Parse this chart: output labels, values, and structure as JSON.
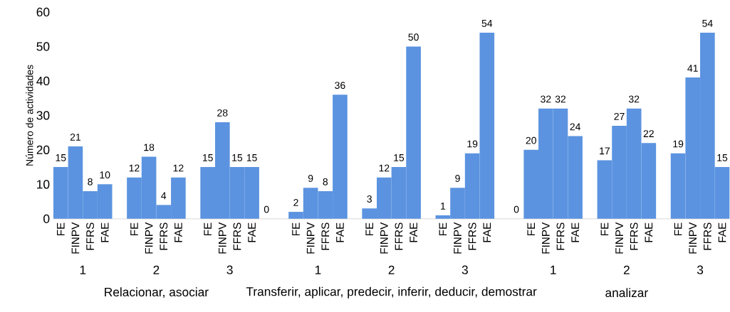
{
  "chart_data": {
    "type": "bar",
    "ylabel": "Número de actividades",
    "categories": [
      "FE",
      "FINPV",
      "FFRS",
      "FAE",
      null,
      "FE",
      "FINPV",
      "FFRS",
      "FAE",
      null,
      "FE",
      "FINPV",
      "FFRS",
      "FAE",
      null,
      null,
      "FE",
      "FINPV",
      "FFRS",
      "FAE",
      null,
      "FE",
      "FINPV",
      "FFRS",
      "FAE",
      null,
      "FE",
      "FINPV",
      "FFRS",
      "FAE",
      null,
      null,
      "FE",
      "FINPV",
      "FFRS",
      "FAE",
      null,
      "FE",
      "FINPV",
      "FFRS",
      "FAE",
      null,
      "FE",
      "FINPV",
      "FFRS",
      "FAE"
    ],
    "values": [
      15,
      21,
      8,
      10,
      null,
      12,
      18,
      4,
      12,
      null,
      15,
      28,
      15,
      15,
      0,
      null,
      2,
      9,
      8,
      36,
      null,
      3,
      12,
      15,
      50,
      null,
      1,
      9,
      19,
      54,
      null,
      0,
      20,
      32,
      32,
      24,
      null,
      17,
      27,
      32,
      22,
      null,
      19,
      41,
      54,
      15
    ],
    "color": "#5b93e0",
    "ylim": [
      0,
      60
    ],
    "yticks": [
      0,
      10,
      20,
      30,
      40,
      50,
      60
    ],
    "data_labels": true,
    "annotations": [
      "1",
      "2",
      "3",
      "1",
      "2",
      "3",
      "1",
      "2",
      "3",
      "Relacionar, asociar",
      "Transferir, aplicar, predecir, inferir, deducir, demostrar",
      "analizar"
    ]
  }
}
